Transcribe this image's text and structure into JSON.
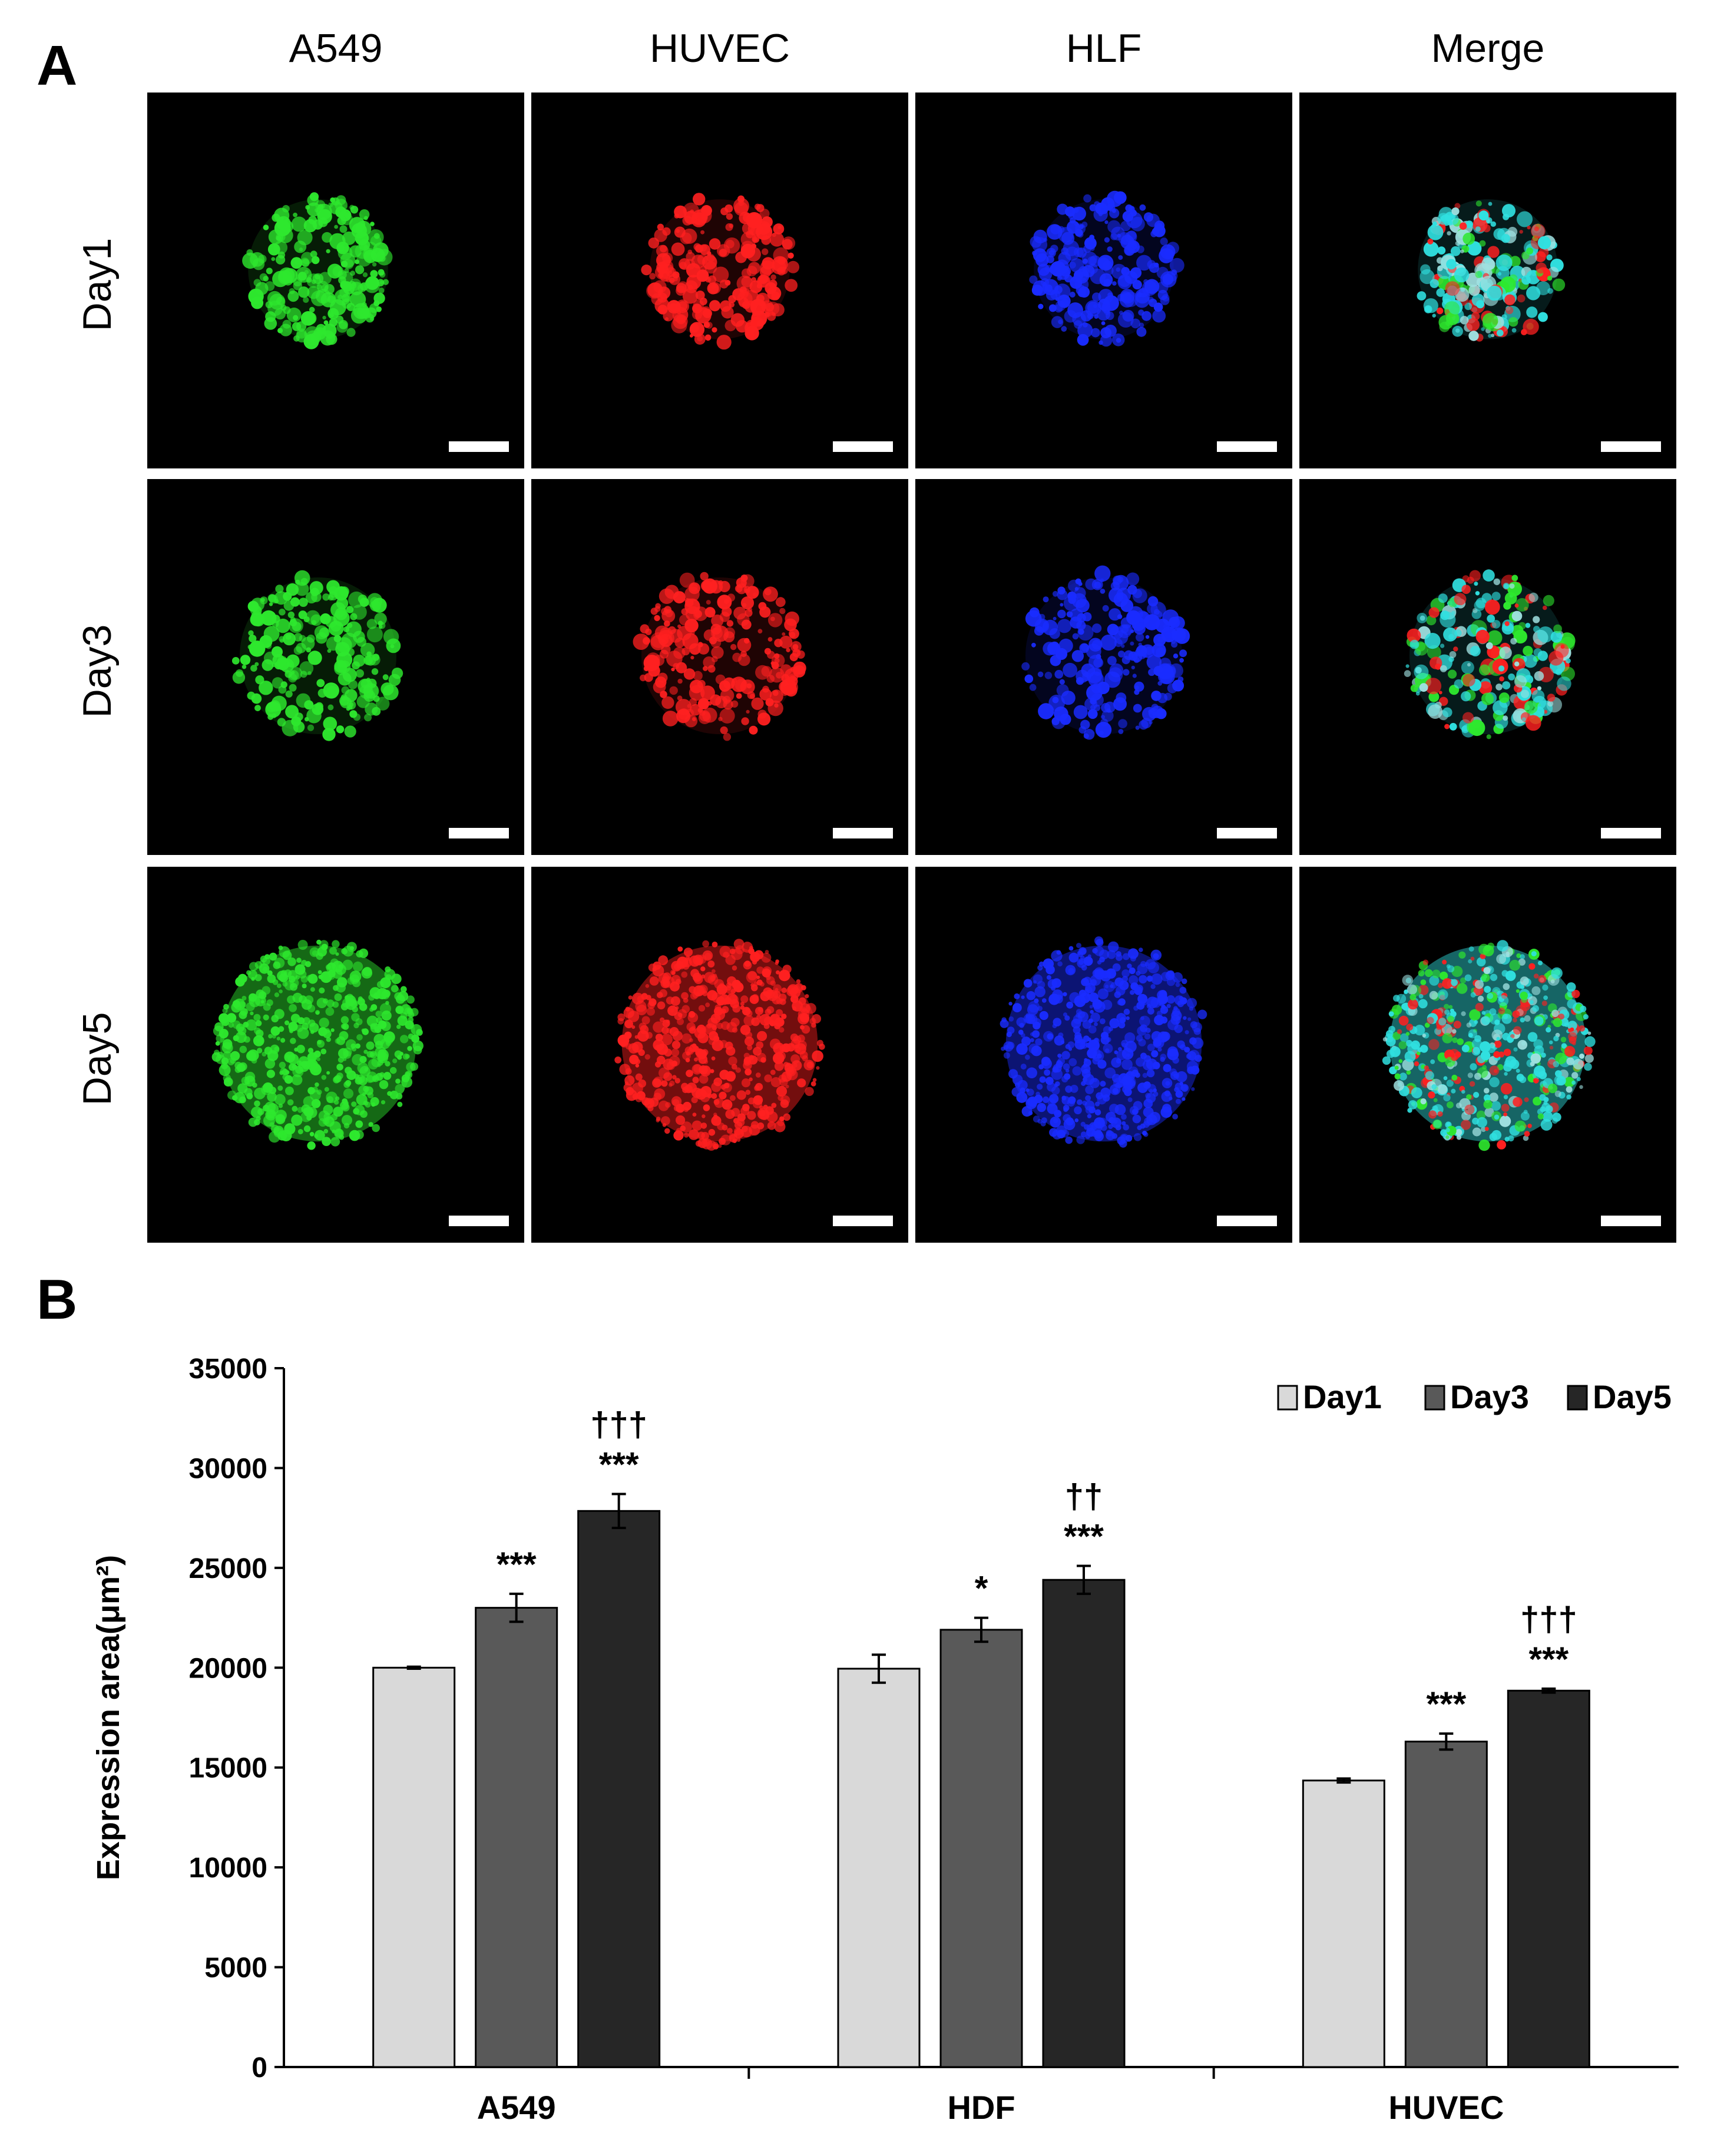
{
  "panel_a": {
    "letter": "A",
    "columns": [
      "A549",
      "HUVEC",
      "HLF",
      "Merge"
    ],
    "rows": [
      "Day1",
      "Day3",
      "Day5"
    ]
  },
  "panel_b": {
    "letter": "B"
  },
  "colors": {
    "green": "#2ee82e",
    "red": "#ff2020",
    "blue": "#1a2cff",
    "merge_cyan": "#30e0e0",
    "day1": "#d9d9d9",
    "day3": "#595959",
    "day5": "#262626"
  },
  "chart_data": {
    "type": "bar",
    "categories": [
      "A549",
      "HDF",
      "HUVEC"
    ],
    "series": [
      {
        "name": "Day1",
        "values": [
          20000,
          19950,
          14350
        ],
        "errors": [
          50,
          700,
          100
        ]
      },
      {
        "name": "Day3",
        "values": [
          23000,
          21900,
          16300
        ],
        "errors": [
          700,
          600,
          400
        ]
      },
      {
        "name": "Day5",
        "values": [
          27850,
          24400,
          18850
        ],
        "errors": [
          850,
          700,
          100
        ]
      }
    ],
    "annotations": [
      [
        "",
        "***",
        "†††\n***"
      ],
      [
        "",
        "*",
        "††\n***"
      ],
      [
        "",
        "***",
        "†††\n***"
      ]
    ],
    "ylabel": "Expression area(μm²)",
    "ylim": [
      0,
      35000
    ],
    "yticks": [
      0,
      5000,
      10000,
      15000,
      20000,
      25000,
      30000,
      35000
    ],
    "legend_position": "top-right",
    "grid": false
  }
}
